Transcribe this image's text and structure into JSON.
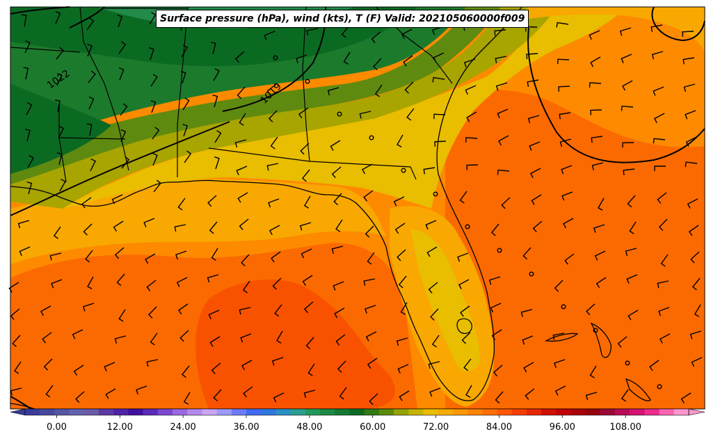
{
  "title": "Surface pressure (hPa), wind (kts), T (F) Valid: 202105060000f009",
  "isobar_labels": [
    "1022",
    "1019"
  ],
  "colorbar": {
    "tick_labels": [
      "0.00",
      "12.00",
      "24.00",
      "36.00",
      "48.00",
      "60.00",
      "72.00",
      "84.00",
      "96.00",
      "108.00"
    ],
    "min": -6,
    "max": 120,
    "step": 3,
    "colors": [
      "#3a3a9a",
      "#47479f",
      "#5555a6",
      "#6262ae",
      "#6a5aa8",
      "#5b3aa6",
      "#4f22a6",
      "#3f0fa0",
      "#5a2bb9",
      "#7c47cf",
      "#9a68e0",
      "#b488ea",
      "#c9a5f3",
      "#9b9bf7",
      "#6c7cf7",
      "#3f6af1",
      "#2f77e0",
      "#2a8fc4",
      "#2a9f90",
      "#209a5c",
      "#1b8a45",
      "#137a36",
      "#0b6a22",
      "#2f7a12",
      "#5b8a0a",
      "#93a304",
      "#c4b300",
      "#ecbd00",
      "#f6ac00",
      "#fb9800",
      "#fd8400",
      "#fe6e00",
      "#fe5600",
      "#f73e00",
      "#e52600",
      "#d10f00",
      "#c10006",
      "#aa0008",
      "#95000f",
      "#9a0a38",
      "#b80c58",
      "#d51273",
      "#ec2b90",
      "#f764b2",
      "#fb97cf"
    ]
  },
  "colors": {
    "hot": "#fb6a00",
    "warm": "#fe8a00",
    "amber": "#f8a800",
    "gold": "#e9bd00",
    "olive": "#a8a400",
    "olive-green": "#5f8a10",
    "green": "#1c7a2c",
    "dark-green": "#0b6a22",
    "teal-green": "#228a4a",
    "very-hot": "#f85200"
  }
}
